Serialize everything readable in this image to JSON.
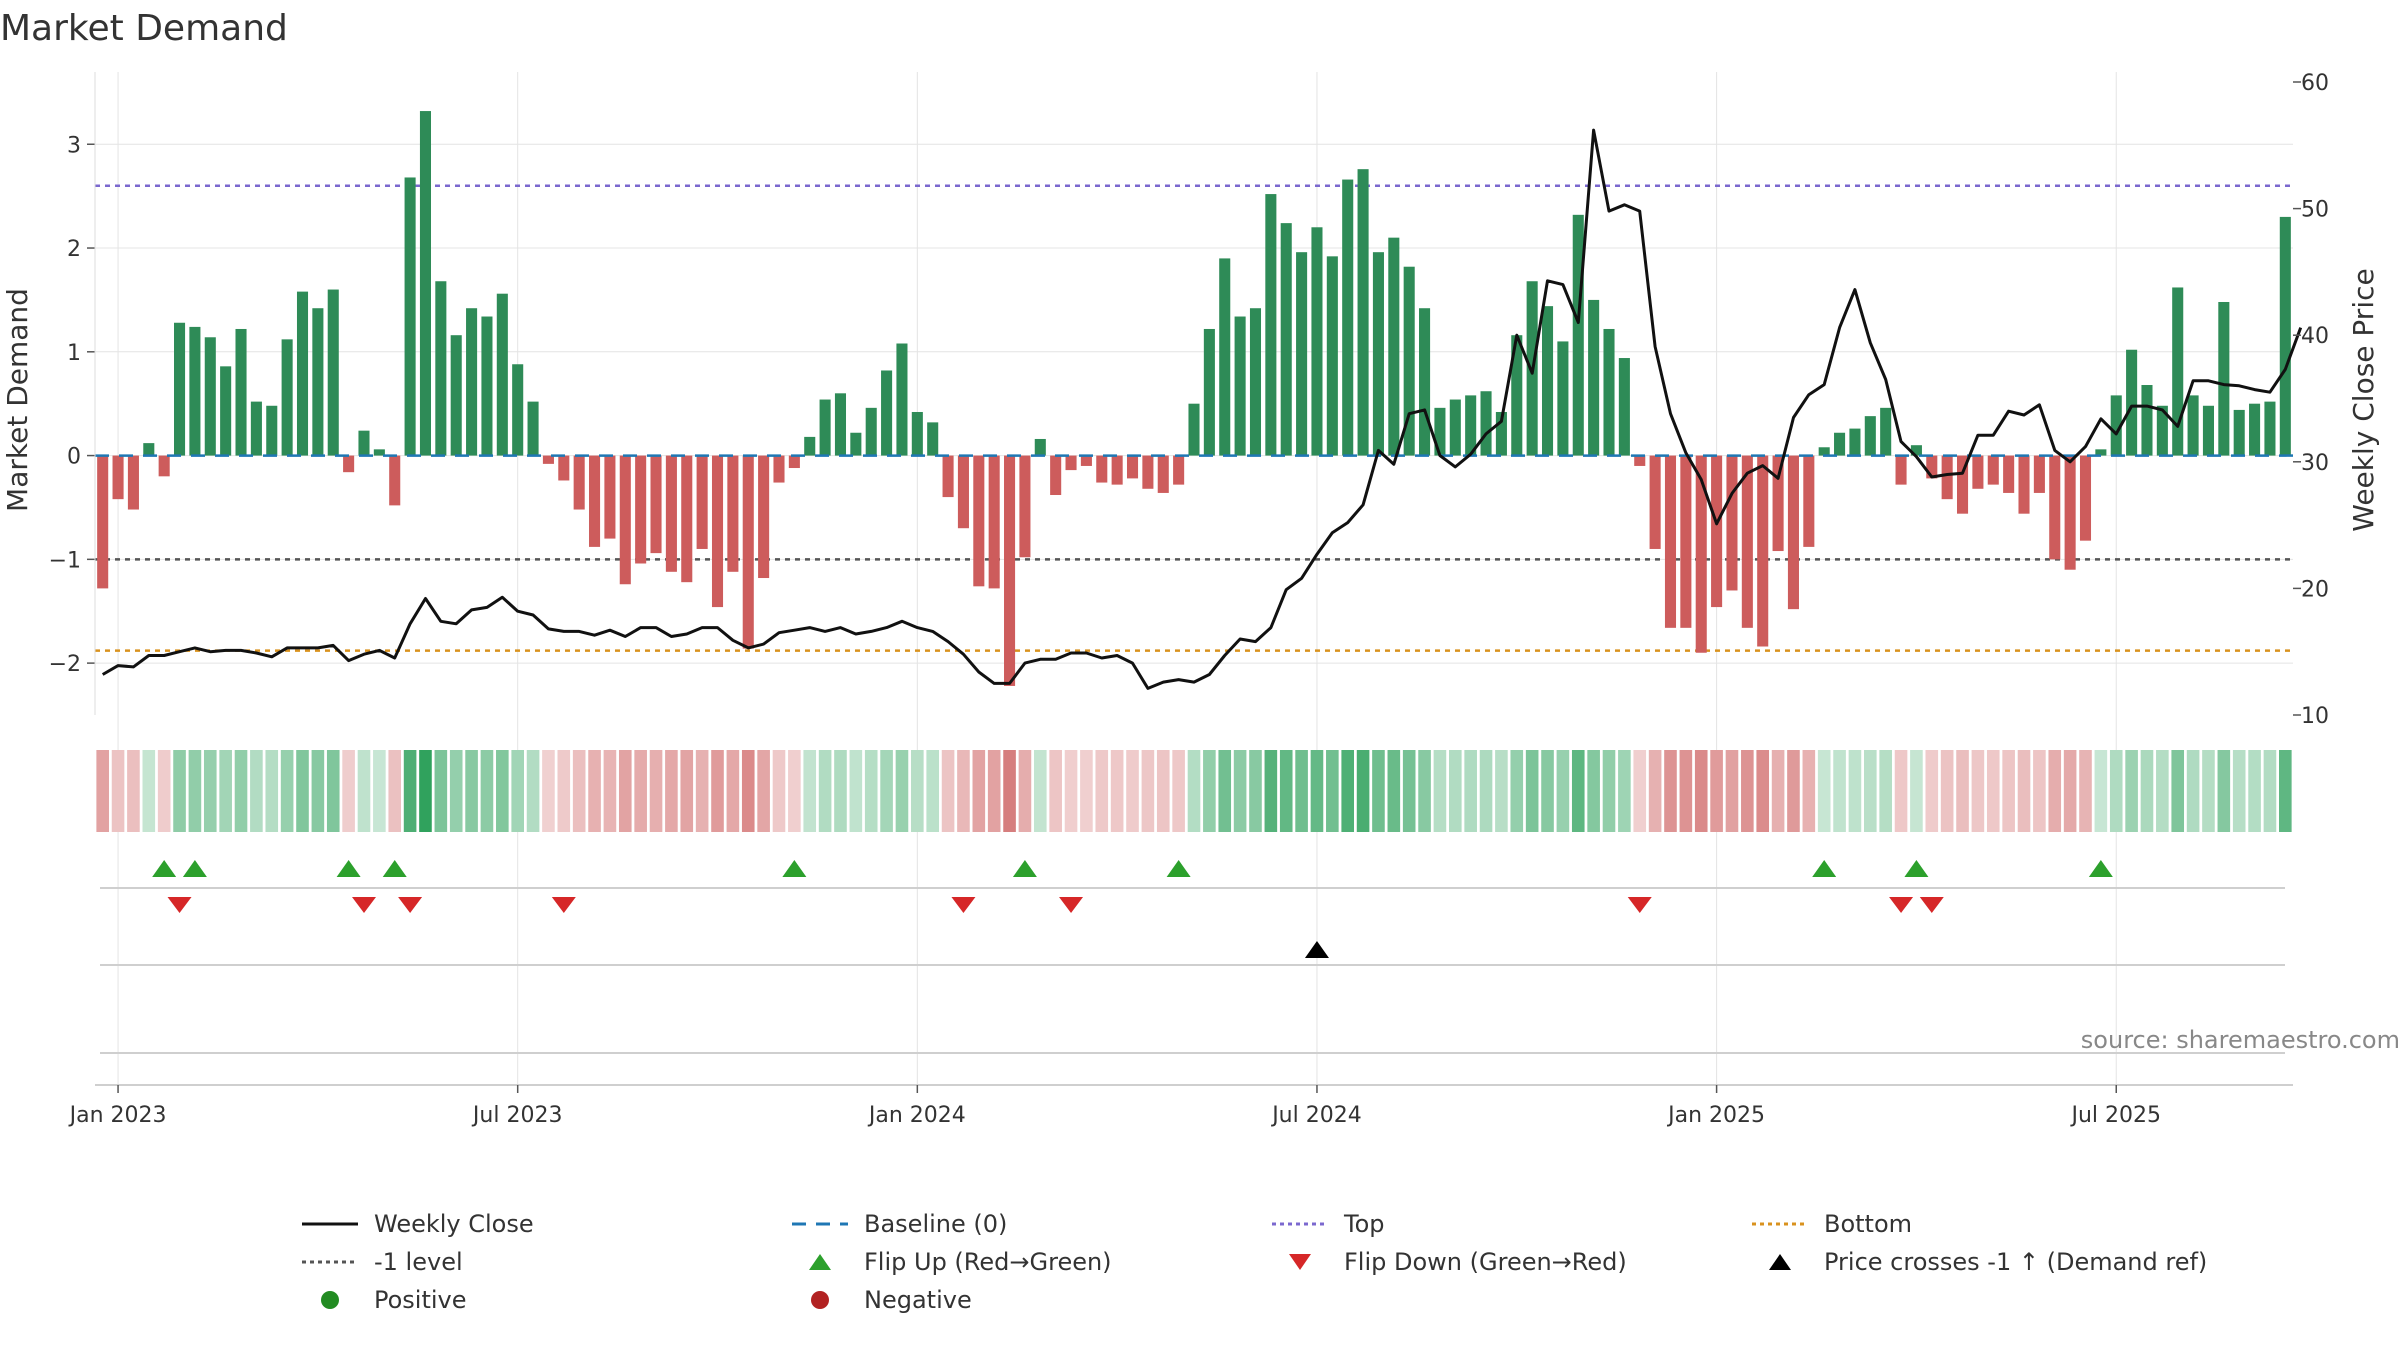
{
  "chart_data": {
    "type": "bar",
    "title": "Market Demand",
    "ylabel_left": "Market Demand",
    "ylabel_right": "Weekly Close Price",
    "ylim_left": [
      -2.5,
      3.6
    ],
    "ylim_right": [
      10,
      60
    ],
    "yticks_left": [
      3,
      2,
      1,
      0,
      -1,
      -2
    ],
    "ytick_labels_left": [
      "3",
      "2",
      "1",
      "0",
      "−1",
      "−2"
    ],
    "yticks_right": [
      60,
      50,
      40,
      30,
      20,
      10
    ],
    "ytick_labels_right": [
      "60",
      "50",
      "40",
      "30",
      "20",
      "10"
    ],
    "x_ticks": [
      {
        "label": "Jan 2023",
        "index": 1
      },
      {
        "label": "Jul 2023",
        "index": 27
      },
      {
        "label": "Jan 2024",
        "index": 53
      },
      {
        "label": "Jul 2024",
        "index": 79
      },
      {
        "label": "Jan 2025",
        "index": 105
      },
      {
        "label": "Jul 2025",
        "index": 131
      }
    ],
    "reference_lines": {
      "top": 2.6,
      "minus1": -1.0,
      "bottom": -1.88,
      "baseline": 0
    },
    "series": [
      {
        "name": "Market Demand",
        "axis": "left",
        "values": [
          -1.28,
          -0.42,
          -0.52,
          0.12,
          -0.2,
          1.28,
          1.24,
          1.14,
          0.86,
          1.22,
          0.52,
          0.48,
          1.12,
          1.58,
          1.42,
          1.6,
          -0.16,
          0.24,
          0.06,
          -0.48,
          2.68,
          3.32,
          1.68,
          1.16,
          1.42,
          1.34,
          1.56,
          0.88,
          0.52,
          -0.08,
          -0.24,
          -0.52,
          -0.88,
          -0.8,
          -1.24,
          -1.04,
          -0.94,
          -1.12,
          -1.22,
          -0.9,
          -1.46,
          -1.12,
          -1.86,
          -1.18,
          -0.26,
          -0.12,
          0.18,
          0.54,
          0.6,
          0.22,
          0.46,
          0.82,
          1.08,
          0.42,
          0.32,
          -0.4,
          -0.7,
          -1.26,
          -1.28,
          -2.22,
          -0.98,
          0.16,
          -0.38,
          -0.14,
          -0.1,
          -0.26,
          -0.28,
          -0.22,
          -0.32,
          -0.36,
          -0.28,
          0.5,
          1.22,
          1.9,
          1.34,
          1.42,
          2.52,
          2.24,
          1.96,
          2.2,
          1.92,
          2.66,
          2.76,
          1.96,
          2.1,
          1.82,
          1.42,
          0.46,
          0.54,
          0.58,
          0.62,
          0.42,
          1.16,
          1.68,
          1.44,
          1.1,
          2.32,
          1.5,
          1.22,
          0.94,
          -0.1,
          -0.9,
          -1.66,
          -1.66,
          -1.9,
          -1.46,
          -1.3,
          -1.66,
          -1.84,
          -0.92,
          -1.48,
          -0.88,
          0.08,
          0.22,
          0.26,
          0.38,
          0.46,
          -0.28,
          0.1,
          -0.22,
          -0.42,
          -0.56,
          -0.32,
          -0.28,
          -0.36,
          -0.56,
          -0.36,
          -1.0,
          -1.1,
          -0.82,
          0.06,
          0.58,
          1.02,
          0.68,
          0.48,
          1.62,
          0.58,
          0.48,
          1.48,
          0.44,
          0.5,
          0.52,
          2.3
        ]
      },
      {
        "name": "Weekly Close",
        "axis": "right",
        "values": [
          13.2,
          13.9,
          13.8,
          14.7,
          14.7,
          15.0,
          15.3,
          15.0,
          15.1,
          15.1,
          14.9,
          14.6,
          15.3,
          15.3,
          15.3,
          15.5,
          14.3,
          14.8,
          15.1,
          14.5,
          17.2,
          19.2,
          17.4,
          17.2,
          18.3,
          18.5,
          19.3,
          18.2,
          17.9,
          16.8,
          16.6,
          16.6,
          16.3,
          16.7,
          16.2,
          16.9,
          16.9,
          16.2,
          16.4,
          16.9,
          16.9,
          15.9,
          15.3,
          15.6,
          16.5,
          16.7,
          16.9,
          16.6,
          16.9,
          16.4,
          16.6,
          16.9,
          17.4,
          16.9,
          16.6,
          15.8,
          14.8,
          13.4,
          12.5,
          12.5,
          14.1,
          14.4,
          14.4,
          14.9,
          14.9,
          14.5,
          14.7,
          14.1,
          12.1,
          12.6,
          12.8,
          12.6,
          13.2,
          14.7,
          16.0,
          15.8,
          16.9,
          19.9,
          20.8,
          22.7,
          24.4,
          25.2,
          26.6,
          30.9,
          29.8,
          33.8,
          34.1,
          30.5,
          29.6,
          30.6,
          32.2,
          33.2,
          40.0,
          37.0,
          44.3,
          44.0,
          41.0,
          56.2,
          49.8,
          50.3,
          49.8,
          39.1,
          33.8,
          30.7,
          28.6,
          25.1,
          27.5,
          29.1,
          29.7,
          28.7,
          33.5,
          35.3,
          36.1,
          40.6,
          43.6,
          39.4,
          36.5,
          31.6,
          30.4,
          28.8,
          29.0,
          29.1,
          32.1,
          32.1,
          34.0,
          33.7,
          34.5,
          30.9,
          30.0,
          31.2,
          33.4,
          32.2,
          34.4,
          34.4,
          34.1,
          32.8,
          36.4,
          36.4,
          36.1,
          36.0,
          35.7,
          35.5,
          37.3,
          40.6
        ]
      }
    ],
    "markers": {
      "flip_up": [
        4,
        6,
        16,
        19,
        45,
        60,
        70,
        112,
        118,
        130
      ],
      "flip_down": [
        5,
        17,
        20,
        30,
        56,
        63,
        100,
        117,
        119
      ],
      "price_cross": [
        79
      ]
    },
    "legend": [
      {
        "label": "Weekly Close",
        "symbol": "line"
      },
      {
        "label": "Baseline (0)",
        "symbol": "dash"
      },
      {
        "label": "Top",
        "symbol": "dot-line"
      },
      {
        "label": "Bottom",
        "symbol": "dot-line"
      },
      {
        "label": "-1 level",
        "symbol": "dot-line"
      },
      {
        "label": "Flip Up (Red→Green)",
        "symbol": "triangle-up"
      },
      {
        "label": "Flip Down (Green→Red)",
        "symbol": "triangle-down"
      },
      {
        "label": "Price crosses -1 ↑ (Demand ref)",
        "symbol": "triangle-up"
      },
      {
        "label": "Positive",
        "symbol": "circle"
      },
      {
        "label": "Negative",
        "symbol": "circle"
      }
    ],
    "source": "source: sharemaestro.com"
  },
  "colors": {
    "positive": "#2e8b57",
    "negative": "#cd5c5c",
    "close": "#111111",
    "baseline": "#1f77b4",
    "top": "#7b68cf",
    "minus1": "#555555",
    "bottom": "#d9921e",
    "flip_up": "#2ca02c",
    "flip_down": "#d62728",
    "cross": "#000000",
    "positive_dot": "#228b22",
    "negative_dot": "#b22222",
    "grid": "#e4e4e4"
  }
}
